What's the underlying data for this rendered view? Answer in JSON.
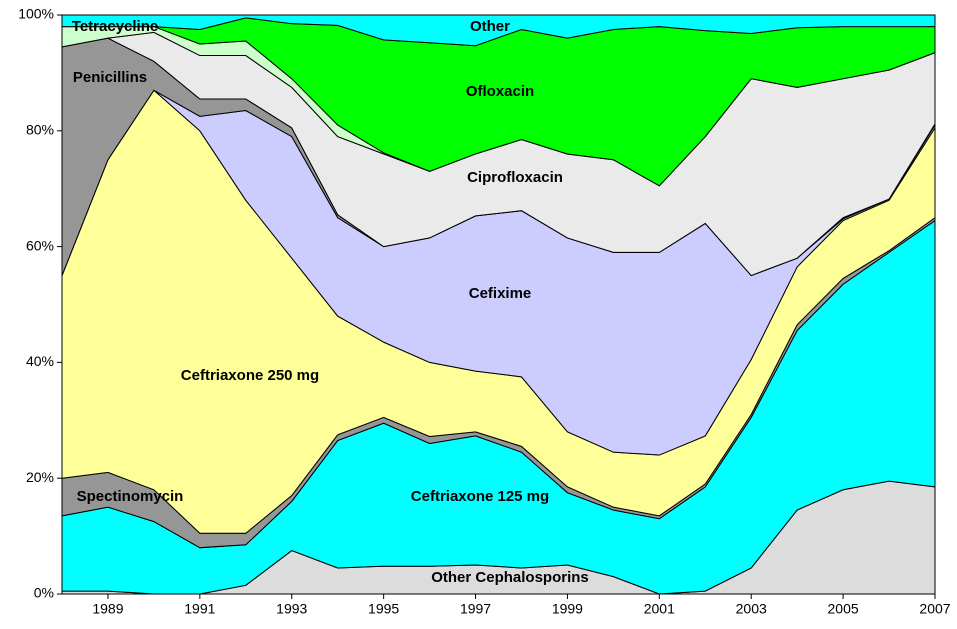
{
  "chart_data": {
    "type": "stacked_area",
    "x": [
      1988,
      1989,
      1990,
      1991,
      1992,
      1993,
      1994,
      1995,
      1996,
      1997,
      1998,
      1999,
      2000,
      2001,
      2002,
      2003,
      2004,
      2005,
      2006,
      2007
    ],
    "xlim": [
      1988,
      2007
    ],
    "xticks": [
      1989,
      1991,
      1993,
      1995,
      1997,
      1999,
      2001,
      2003,
      2005,
      2007
    ],
    "ylim": [
      0,
      100
    ],
    "yticks": [
      {
        "value": 0,
        "label": "0%"
      },
      {
        "value": 20,
        "label": "20%"
      },
      {
        "value": 40,
        "label": "40%"
      },
      {
        "value": 60,
        "label": "60%"
      },
      {
        "value": 80,
        "label": "80%"
      },
      {
        "value": 100,
        "label": "100%"
      }
    ],
    "series": [
      {
        "name": "Other Cephalosporins",
        "color": "#dcdcdc",
        "values": [
          0.5,
          0.5,
          0,
          0,
          1.5,
          7.5,
          4.5,
          4.8,
          4.8,
          5,
          4.5,
          5,
          3,
          0,
          0.5,
          4.5,
          14.5,
          18,
          19.5,
          18.5
        ]
      },
      {
        "name": "Ceftriaxone 125 mg",
        "color": "#00ffff",
        "values": [
          13,
          14.5,
          12.5,
          8,
          7,
          8.5,
          22,
          24.7,
          21.2,
          22.3,
          20,
          12.5,
          11.5,
          13,
          18,
          26,
          31,
          35.5,
          39.5,
          46
        ]
      },
      {
        "name": "Spectinomycin",
        "color": "#969696",
        "values": [
          6.5,
          6,
          5.5,
          2.5,
          2,
          1,
          1,
          1,
          1.2,
          0.7,
          1,
          1,
          0.5,
          0.5,
          0.5,
          0.5,
          1,
          1,
          0.3,
          0.5
        ]
      },
      {
        "name": "Ceftriaxone 250 mg",
        "color": "#ffff99",
        "values": [
          35,
          54,
          69,
          69.5,
          57.5,
          41,
          20.5,
          13,
          12.8,
          10.5,
          12,
          9.5,
          9.5,
          10.5,
          8.3,
          9.5,
          10,
          10,
          8.7,
          15.5
        ]
      },
      {
        "name": "Cefixime",
        "color": "#ccccff",
        "values": [
          0,
          0,
          0,
          2.5,
          15.5,
          21,
          17,
          16.5,
          21.5,
          26.8,
          28.7,
          33.5,
          34.5,
          35,
          36.7,
          14.5,
          1.5,
          0.3,
          0.2,
          0.5
        ]
      },
      {
        "name": "Penicillins",
        "color": "#969696",
        "values": [
          39.5,
          21,
          5,
          3,
          2,
          1.5,
          0.5,
          0,
          0,
          0,
          0,
          0,
          0,
          0,
          0,
          0,
          0,
          0.2,
          0,
          0.2
        ]
      },
      {
        "name": "Ciprofloxacin",
        "color": "#eaeaea",
        "values": [
          0,
          0,
          5,
          7.5,
          7.5,
          7,
          13.5,
          16,
          11.5,
          10.7,
          12.3,
          14.5,
          16,
          11.5,
          15,
          34,
          29.5,
          24,
          22.3,
          12.3
        ]
      },
      {
        "name": "Tetracycline",
        "color": "#ccffcc",
        "values": [
          3.5,
          2,
          1,
          2,
          2.5,
          1.5,
          2,
          0.2,
          0,
          0,
          0,
          0,
          0,
          0,
          0,
          0,
          0,
          0,
          0,
          0
        ]
      },
      {
        "name": "Ofloxacin",
        "color": "#00ff00",
        "values": [
          0,
          0,
          0,
          2.5,
          4,
          9.5,
          17.2,
          19.5,
          22.2,
          18.7,
          19,
          20,
          22.5,
          27.5,
          18.3,
          7.8,
          10.3,
          9,
          7.5,
          4.5
        ]
      },
      {
        "name": "Other",
        "color": "#00ffff",
        "values": [
          2,
          2,
          2,
          2.5,
          0.5,
          1.5,
          1.8,
          4.3,
          4.8,
          5.3,
          2.5,
          4,
          2.5,
          2,
          2.7,
          3.2,
          2.2,
          2,
          2,
          2
        ]
      }
    ]
  }
}
